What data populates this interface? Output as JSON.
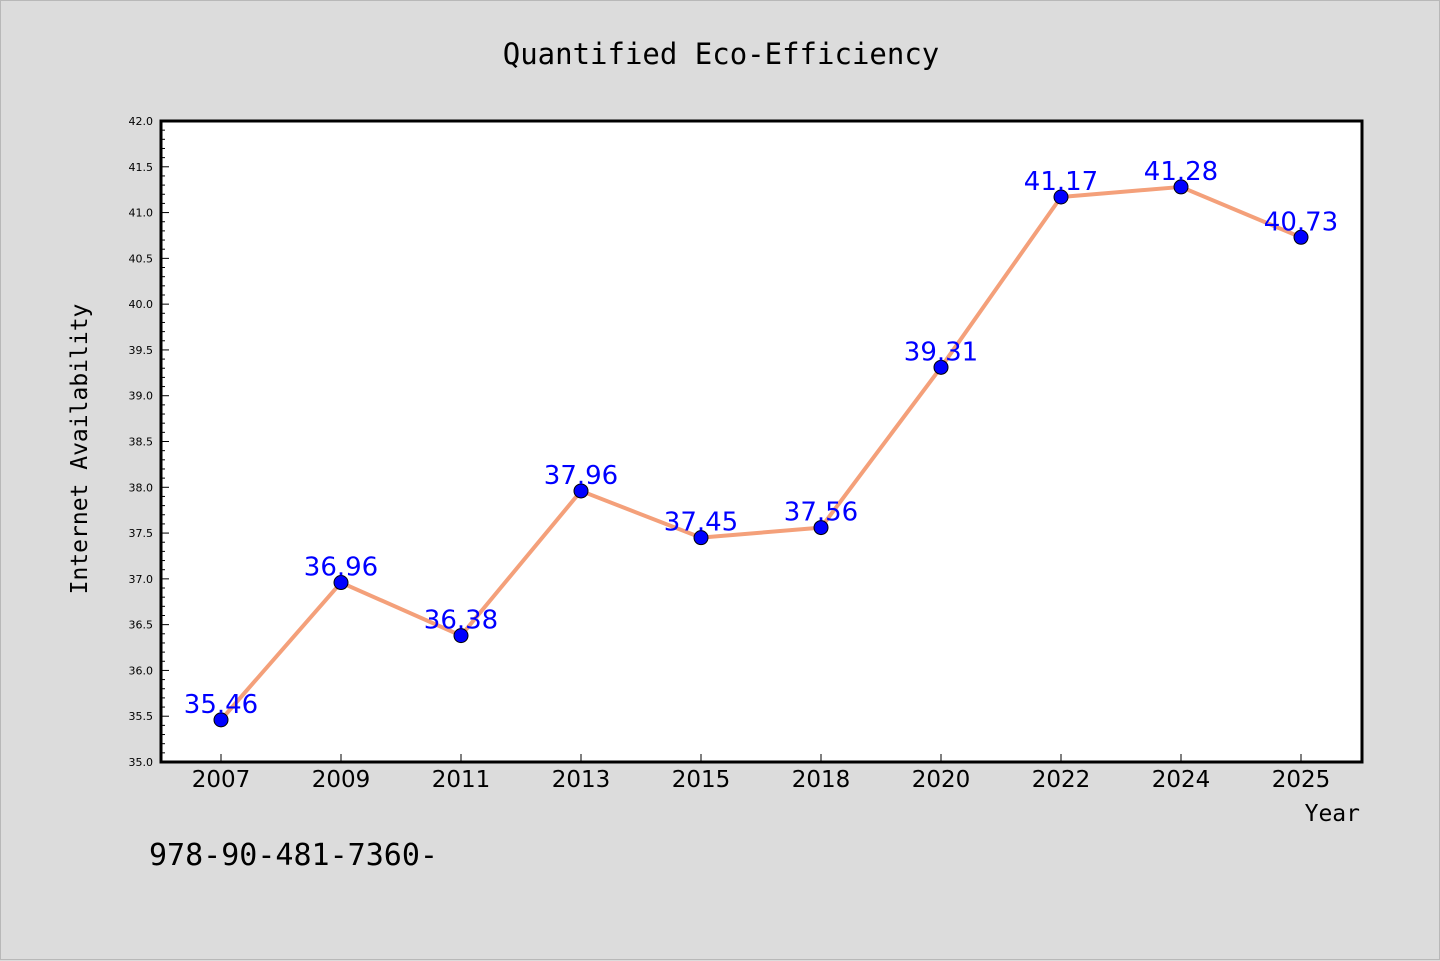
{
  "footer_text": "978-90-481-7360-",
  "colors": {
    "figure_background": "#dcdcdc",
    "plot_background": "#ffffff",
    "line": "#f4a07a",
    "marker": "#0000ff",
    "data_label": "#0000ff",
    "text": "#000000"
  },
  "chart_data": {
    "type": "line",
    "title": "Quantified Eco-Efficiency",
    "xlabel": "Year",
    "ylabel": "Internet Availability",
    "categories": [
      "2007",
      "2009",
      "2011",
      "2013",
      "2015",
      "2018",
      "2020",
      "2022",
      "2024",
      "2025"
    ],
    "series": [
      {
        "values": [
          35.46,
          36.96,
          36.38,
          37.96,
          37.45,
          37.56,
          39.31,
          41.17,
          41.28,
          40.73
        ]
      }
    ],
    "data_labels": [
      "35.46",
      "36.96",
      "36.38",
      "37.96",
      "37.45",
      "37.56",
      "39.31",
      "41.17",
      "41.28",
      "40.73"
    ],
    "ylim": [
      35.0,
      42.0
    ],
    "yticks": [
      "35.0",
      "35.5",
      "36.0",
      "36.5",
      "37.0",
      "37.5",
      "38.0",
      "38.5",
      "39.0",
      "39.5",
      "40.0",
      "40.5",
      "41.0",
      "41.5",
      "42.0"
    ],
    "grid": false,
    "legend": "none"
  }
}
